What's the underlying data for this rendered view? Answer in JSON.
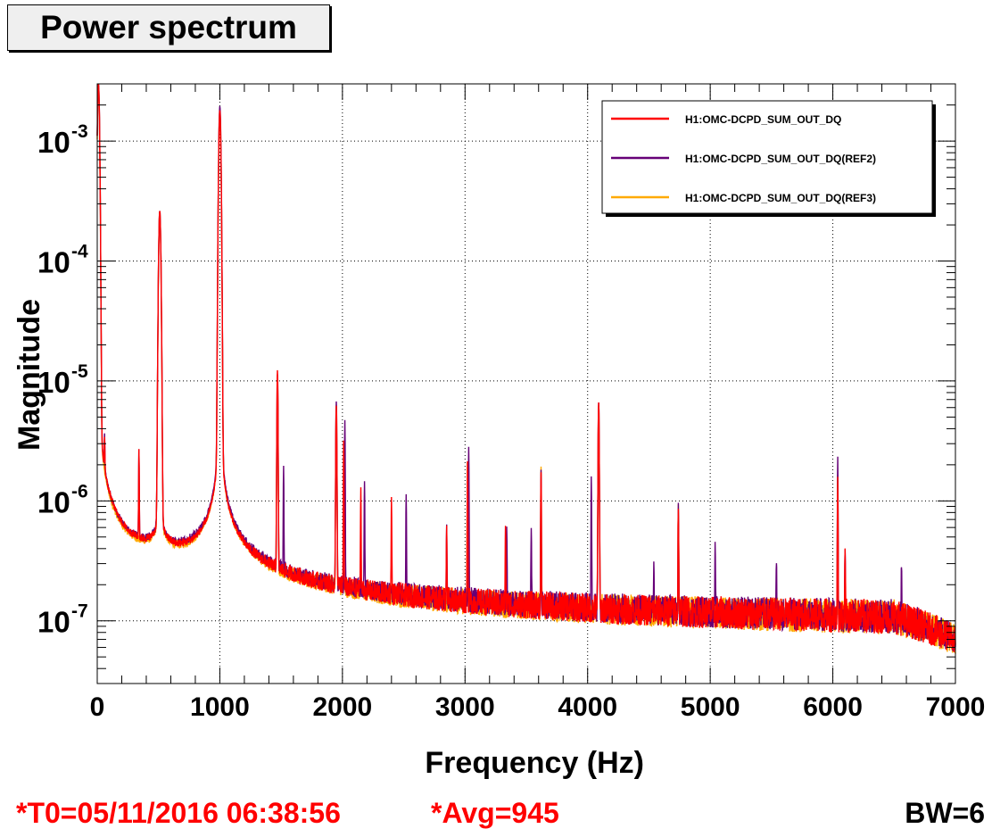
{
  "title": "Power spectrum",
  "footer": {
    "t0": "*T0=05/11/2016 06:38:56",
    "avg": "*Avg=945",
    "bw": "BW=6"
  },
  "colors": {
    "series_main": "#ff0000",
    "series_ref2": "#660077",
    "series_ref3": "#ffaa00"
  },
  "chart_data": {
    "type": "line",
    "title": "Power spectrum",
    "xlabel": "Frequency (Hz)",
    "ylabel": "Magnitude",
    "xlim": [
      0,
      7000
    ],
    "ylim": [
      3e-08,
      0.003
    ],
    "yscale": "log",
    "grid": true,
    "legend_position": "top-right",
    "x_ticks": [
      0,
      1000,
      2000,
      3000,
      4000,
      5000,
      6000,
      7000
    ],
    "x_tick_labels": [
      "0",
      "1000",
      "2000",
      "3000",
      "4000",
      "5000",
      "6000",
      "7000"
    ],
    "y_ticks": [
      1e-07,
      1e-06,
      1e-05,
      0.0001,
      0.001
    ],
    "y_tick_labels": [
      {
        "base": "10",
        "exp": "-7"
      },
      {
        "base": "10",
        "exp": "-6"
      },
      {
        "base": "10",
        "exp": "-5"
      },
      {
        "base": "10",
        "exp": "-4"
      },
      {
        "base": "10",
        "exp": "-3"
      }
    ],
    "baseline_level": 8e-08,
    "series": [
      {
        "name": "H1:OMC-DCPD_SUM_OUT_DQ",
        "color": "#ff0000",
        "peaks": [
          [
            10,
            0.003
          ],
          [
            60,
            1.5e-06
          ],
          [
            340,
            2.2e-06
          ],
          [
            510,
            0.00026
          ],
          [
            1000,
            0.0018
          ],
          [
            1470,
            1.2e-05
          ],
          [
            1950,
            6e-06
          ],
          [
            2010,
            3e-06
          ],
          [
            2150,
            1.1e-06
          ],
          [
            2400,
            9e-07
          ],
          [
            2850,
            5e-07
          ],
          [
            3020,
            2e-06
          ],
          [
            3330,
            5e-07
          ],
          [
            3620,
            1.6e-06
          ],
          [
            4090,
            6.5e-06
          ],
          [
            4740,
            7.5e-07
          ],
          [
            6040,
            1.5e-06
          ],
          [
            6100,
            3e-07
          ]
        ]
      },
      {
        "name": "H1:OMC-DCPD_SUM_OUT_DQ(REF2)",
        "color": "#660077",
        "peaks": [
          [
            10,
            0.003
          ],
          [
            60,
            1.8e-06
          ],
          [
            340,
            2.2e-06
          ],
          [
            510,
            0.00026
          ],
          [
            1000,
            0.00195
          ],
          [
            1470,
            1.1e-05
          ],
          [
            1520,
            1.7e-06
          ],
          [
            1950,
            6.5e-06
          ],
          [
            2020,
            4.5e-06
          ],
          [
            2180,
            1.3e-06
          ],
          [
            2520,
            1e-06
          ],
          [
            2850,
            5e-07
          ],
          [
            3030,
            2.7e-06
          ],
          [
            3340,
            5e-07
          ],
          [
            3540,
            4.5e-07
          ],
          [
            3620,
            1.7e-06
          ],
          [
            4030,
            1.5e-06
          ],
          [
            4090,
            6.5e-06
          ],
          [
            4540,
            2e-07
          ],
          [
            4740,
            8e-07
          ],
          [
            5040,
            3e-07
          ],
          [
            5540,
            2e-07
          ],
          [
            6040,
            2.2e-06
          ],
          [
            6100,
            3e-07
          ],
          [
            6560,
            2e-07
          ]
        ]
      },
      {
        "name": "H1:OMC-DCPD_SUM_OUT_DQ(REF3)",
        "color": "#ffaa00",
        "peaks": [
          [
            10,
            0.0028
          ],
          [
            510,
            0.00025
          ],
          [
            1000,
            0.0018
          ],
          [
            1470,
            1e-05
          ],
          [
            1950,
            6e-06
          ],
          [
            3020,
            2e-06
          ],
          [
            3620,
            1.8e-06
          ],
          [
            4090,
            6e-06
          ],
          [
            4740,
            8e-07
          ],
          [
            6040,
            1.5e-06
          ]
        ]
      }
    ]
  }
}
